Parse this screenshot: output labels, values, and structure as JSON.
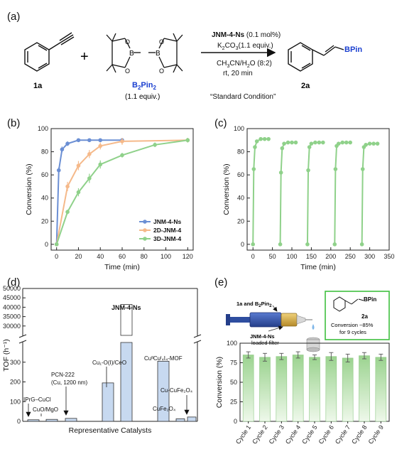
{
  "panels": {
    "a": {
      "label": "(a)",
      "reactant1_label": "1a",
      "plus": "+",
      "reactant2_name_main": "B",
      "reactant2_name_sub": "2",
      "reactant2_name_main2": "Pin",
      "reactant2_name_sub2": "2",
      "reactant2_equiv": "(1.1 equiv.)",
      "catalyst_bold": "JNM-4-Ns",
      "catalyst_rest": " (0.1 mol%)",
      "base_a": "K",
      "base_a_sub": "2",
      "base_b": "CO",
      "base_b_sub": "3",
      "base_rest": "(1.1 equiv.)",
      "solvent_a": "CH",
      "solvent_a_sub": "3",
      "solvent_b": "CN/H",
      "solvent_b_sub": "2",
      "solvent_rest": "O (8:2)",
      "time": "rt, 20 min",
      "standard": "“Standard Condition”",
      "product_label": "2a",
      "product_group": "BPin",
      "atoms": {
        "b": "B",
        "o": "O"
      }
    },
    "b": {
      "label": "(b)"
    },
    "c": {
      "label": "(c)"
    },
    "d": {
      "label": "(d)",
      "catalyst_labels": {
        "iprcucl": "IPrG–CuCl",
        "cuomgo": "CuO/MgO",
        "pcn_line1": "PCN-222",
        "pcn_line2": "(Cu, 1200 nm)",
        "cuoceo": "Cu₁-O(I)/CeO",
        "jnm": "JNM-4-Ns",
        "cumof": "CuᴵᴵCuᴵ₄I₄-MOF",
        "cucufe": "Cu-CuFe₂O₄",
        "cufe": "CuFe₂O₄"
      }
    },
    "e": {
      "label": "(e)",
      "feed_a": "1a and B",
      "feed_sub": "2",
      "feed_b": "Pin",
      "feed_sub2": "2",
      "filter_bold": "JNM-4-Ns",
      "filter_rest": "loaded filter",
      "inset_product_group": "BPin",
      "inset_label": "2a",
      "inset_line1": "Conversion ~85%",
      "inset_line2": "for 9 cycles"
    }
  },
  "colors": {
    "jnm4ns": "#6b8fd4",
    "jnm2d": "#f5b98a",
    "jnm3d": "#8fd18a",
    "catalyst_blue": "#c7d9f0",
    "bar_green_top": "#9bd38f",
    "bar_green_bottom": "#e8f6e4",
    "inset_border": "#3fbf3f",
    "bpin_blue": "#1a3fd0"
  },
  "chart_data": [
    {
      "type": "line",
      "panel": "b",
      "xlabel": "Time (min)",
      "ylabel": "Conversion (%)",
      "xlim": [
        -5,
        125
      ],
      "ylim": [
        -5,
        100
      ],
      "xticks": [
        0,
        20,
        40,
        60,
        80,
        100,
        120
      ],
      "yticks": [
        0,
        20,
        40,
        60,
        80,
        100
      ],
      "legend_position": "bottom-right",
      "series": [
        {
          "name": "JNM-4-Ns",
          "x": [
            0,
            2,
            5,
            10,
            20,
            30,
            40,
            60
          ],
          "y": [
            0,
            64,
            82,
            87,
            90,
            90,
            90,
            90
          ],
          "err": [
            0,
            2.5,
            2.5,
            2,
            1.5,
            1,
            1,
            1
          ]
        },
        {
          "name": "2D-JNM-4",
          "x": [
            0,
            10,
            20,
            30,
            40,
            60,
            120
          ],
          "y": [
            0,
            50,
            68,
            78,
            85,
            89,
            90
          ],
          "err": [
            0,
            4,
            4,
            3.5,
            3,
            3,
            2
          ]
        },
        {
          "name": "3D-JNM-4",
          "x": [
            0,
            10,
            20,
            30,
            40,
            60,
            90,
            120
          ],
          "y": [
            0,
            28,
            45,
            57,
            69,
            77,
            86,
            90
          ],
          "err": [
            0,
            2,
            3.5,
            4,
            3.5,
            2,
            2,
            2
          ]
        }
      ]
    },
    {
      "type": "scatter",
      "panel": "c",
      "xlabel": "Time (min)",
      "ylabel": "Conversion (%)",
      "xlim": [
        -15,
        350
      ],
      "ylim": [
        -5,
        100
      ],
      "xticks": [
        0,
        50,
        100,
        150,
        200,
        250,
        300,
        350
      ],
      "yticks": [
        0,
        20,
        40,
        60,
        80,
        100
      ],
      "series": [
        {
          "name": "",
          "x": [
            0,
            2,
            5,
            10,
            20,
            30,
            40
          ],
          "y": [
            0,
            65,
            84,
            89,
            91,
            91,
            91
          ]
        },
        {
          "name": "",
          "x": [
            70,
            72,
            75,
            80,
            90,
            100,
            110
          ],
          "y": [
            0,
            62,
            83,
            87,
            88,
            88,
            88
          ]
        },
        {
          "name": "",
          "x": [
            140,
            142,
            145,
            150,
            160,
            170,
            180
          ],
          "y": [
            0,
            64,
            84,
            87,
            88,
            88,
            88
          ]
        },
        {
          "name": "",
          "x": [
            210,
            212,
            215,
            220,
            230,
            240,
            250
          ],
          "y": [
            0,
            65,
            85,
            87,
            88,
            88,
            88
          ]
        },
        {
          "name": "",
          "x": [
            280,
            282,
            285,
            290,
            300,
            310,
            320
          ],
          "y": [
            0,
            65,
            84,
            86,
            87,
            87,
            87
          ]
        }
      ]
    },
    {
      "type": "bar",
      "panel": "d",
      "xlabel": "Representative Catalysts",
      "ylabel": "TOF (h⁻¹)",
      "axis_break": true,
      "lower_range": [
        0,
        400
      ],
      "upper_range": [
        25000,
        50000
      ],
      "lower_ticks": [
        0,
        100,
        200,
        300
      ],
      "upper_ticks": [
        30000,
        35000,
        40000,
        45000,
        50000
      ],
      "categories": [
        "IPrG–CuCl",
        "CuO/MgO",
        "PCN-222 (Cu, 1200 nm)",
        "Cu₁-O(I)/CeO",
        "JNM-4-Ns",
        "CuᴵᴵCuᴵ₄I₄-MOF",
        "CuFe₂O₄",
        "Cu-CuFe₂O₄"
      ],
      "values": [
        8,
        10,
        15,
        195,
        41500,
        305,
        13,
        22
      ]
    },
    {
      "type": "bar",
      "panel": "e",
      "xlabel": "",
      "ylabel": "Conversion (%)",
      "ylim": [
        0,
        100
      ],
      "yticks": [
        0,
        25,
        50,
        75,
        100
      ],
      "categories": [
        "Cycle 1",
        "Cycle 2",
        "Cycle 3",
        "Cycle 4",
        "Cycle 5",
        "Cycle 6",
        "Cycle 7",
        "Cycle 8",
        "Cycle 9"
      ],
      "values": [
        85,
        82,
        83,
        85,
        82,
        83,
        81,
        84,
        82
      ],
      "err": [
        4,
        5,
        4,
        4,
        3,
        5,
        5,
        4,
        4
      ]
    }
  ]
}
